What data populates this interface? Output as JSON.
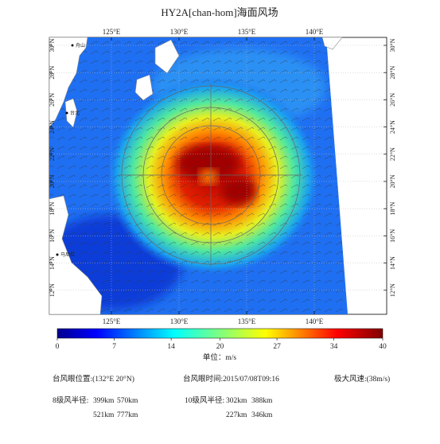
{
  "title": "HY2A[chan-hom]海面风场",
  "map": {
    "lon_ticks": [
      {
        "value": 125,
        "label": "125°E"
      },
      {
        "value": 130,
        "label": "130°E"
      },
      {
        "value": 135,
        "label": "135°E"
      },
      {
        "value": 140,
        "label": "140°E"
      }
    ],
    "lat_ticks": [
      {
        "value": 12,
        "label": "12°N"
      },
      {
        "value": 14,
        "label": "14°N"
      },
      {
        "value": 16,
        "label": "16°N"
      },
      {
        "value": 18,
        "label": "18°N"
      },
      {
        "value": 20,
        "label": "20°N"
      },
      {
        "value": 22,
        "label": "22°N"
      },
      {
        "value": 24,
        "label": "24°N"
      },
      {
        "value": 26,
        "label": "26°N"
      },
      {
        "value": 28,
        "label": "28°N"
      },
      {
        "value": 30,
        "label": "30°N"
      }
    ],
    "places": [
      "舟山",
      "台北",
      "马尼拉"
    ]
  },
  "colorbar": {
    "lim": [
      0,
      40
    ],
    "ticks": [
      0,
      7,
      14,
      20,
      27,
      34,
      40
    ],
    "unit": "单位：m/s"
  },
  "info": {
    "eye_position": "台风眼位置:(132°E 20°N)",
    "eye_time": "台风眼时间:2015/07/08T09:16",
    "max_wind": "极大风速:(38m/s)",
    "gale_label": "8级风半径:",
    "gale_values": [
      "399km",
      "570km",
      "521km",
      "777km"
    ],
    "storm_label": "10级风半径:",
    "storm_values": [
      "302km",
      "388km",
      "227km",
      "346km"
    ]
  }
}
